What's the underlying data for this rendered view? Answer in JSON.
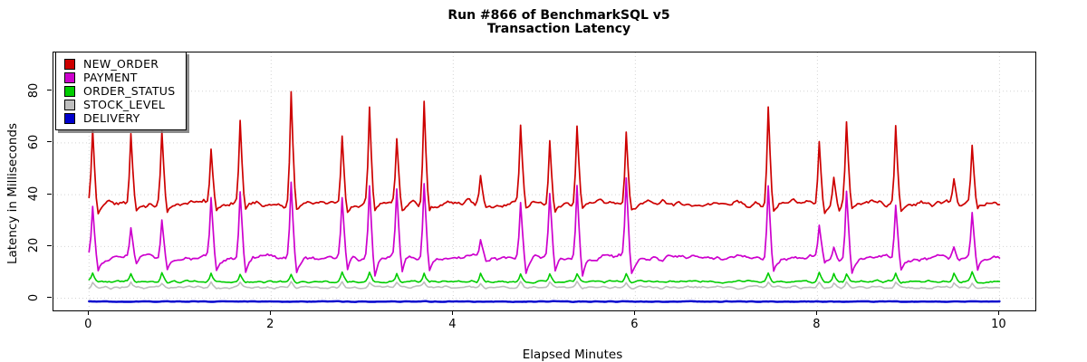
{
  "title": {
    "line1": "Run #866 of BenchmarkSQL v5",
    "line2": "Transaction Latency"
  },
  "axes": {
    "x_label": "Elapsed Minutes",
    "y_label": "Latency in Milliseconds",
    "x_ticks": [
      0,
      2,
      4,
      6,
      8,
      10
    ],
    "y_ticks": [
      0,
      20,
      40,
      60,
      80
    ],
    "x_range": [
      -0.391,
      10.394
    ],
    "y_range": [
      -4.72,
      94.95
    ],
    "grid": true
  },
  "legend": {
    "position": "top-left",
    "items": [
      {
        "label": "NEW_ORDER",
        "color": "#CD0000"
      },
      {
        "label": "PAYMENT",
        "color": "#CD00CD"
      },
      {
        "label": "ORDER_STATUS",
        "color": "#00CD00"
      },
      {
        "label": "STOCK_LEVEL",
        "color": "#BEBEBE"
      },
      {
        "label": "DELIVERY",
        "color": "#0000CD"
      }
    ]
  },
  "chart_data": {
    "type": "line",
    "title": "Run #866 of BenchmarkSQL v5 — Transaction Latency",
    "xlabel": "Elapsed Minutes",
    "ylabel": "Latency in Milliseconds",
    "x_unit": "minutes",
    "duration_minutes": 10,
    "sample_step_minutes": 0.02,
    "xlim": [
      0,
      10
    ],
    "ylim_shown": [
      -4.72,
      94.95
    ],
    "gridlines": "dotted gray at every labeled tick",
    "series": [
      {
        "key": "new_order",
        "name": "NEW_ORDER",
        "color": "#CD0000",
        "baseline_ms": 36.5,
        "noise_ms": 1.1,
        "wobble_ms": 0.5,
        "undershoot_ms": 2.6,
        "line_width": 1.7,
        "seed": 11
      },
      {
        "key": "payment",
        "name": "PAYMENT",
        "color": "#CD00CD",
        "baseline_ms": 15.6,
        "noise_ms": 0.95,
        "wobble_ms": 0.5,
        "undershoot_ms": 5.5,
        "line_width": 1.7,
        "seed": 22
      },
      {
        "key": "order_status",
        "name": "ORDER_STATUS",
        "color": "#00CD00",
        "baseline_ms": 6.4,
        "noise_ms": 0.45,
        "wobble_ms": 0.0,
        "undershoot_ms": 2.0,
        "spike_bump_ms": 3.2,
        "line_width": 1.6,
        "seed": 33
      },
      {
        "key": "stock_level",
        "name": "STOCK_LEVEL",
        "color": "#BEBEBE",
        "baseline_ms": 4.2,
        "noise_ms": 0.45,
        "wobble_ms": 0.0,
        "undershoot_ms": 1.4,
        "spike_bump_ms": 2.0,
        "line_width": 1.6,
        "seed": 44
      },
      {
        "key": "delivery",
        "name": "DELIVERY",
        "color": "#0000CD",
        "baseline_ms": -1.3,
        "noise_ms": 0.12,
        "wobble_ms": 0.0,
        "undershoot_ms": 0.0,
        "line_width": 2.4,
        "seed": 55
      }
    ],
    "spike_events": [
      {
        "t": 0.03,
        "new_order": 65,
        "payment": 35
      },
      {
        "t": 0.47,
        "new_order": 64,
        "payment": 28
      },
      {
        "t": 0.79,
        "new_order": 64,
        "payment": 31
      },
      {
        "t": 1.34,
        "new_order": 57,
        "payment": 39
      },
      {
        "t": 1.65,
        "new_order": 69,
        "payment": 42
      },
      {
        "t": 2.21,
        "new_order": 80,
        "payment": 45
      },
      {
        "t": 2.77,
        "new_order": 63,
        "payment": 38
      },
      {
        "t": 3.07,
        "new_order": 74,
        "payment": 43
      },
      {
        "t": 3.38,
        "new_order": 61,
        "payment": 42
      },
      {
        "t": 3.68,
        "new_order": 76,
        "payment": 44
      },
      {
        "t": 4.31,
        "new_order": 47,
        "payment": 22
      },
      {
        "t": 4.74,
        "new_order": 66,
        "payment": 37
      },
      {
        "t": 5.05,
        "new_order": 62,
        "payment": 40
      },
      {
        "t": 5.35,
        "new_order": 66,
        "payment": 44
      },
      {
        "t": 5.9,
        "new_order": 65,
        "payment": 46
      },
      {
        "t": 7.45,
        "new_order": 75,
        "payment": 44
      },
      {
        "t": 8.01,
        "new_order": 61,
        "payment": 27
      },
      {
        "t": 8.18,
        "new_order": 48,
        "payment": 20
      },
      {
        "t": 8.32,
        "new_order": 68,
        "payment": 42
      },
      {
        "t": 8.87,
        "new_order": 67,
        "payment": 36
      },
      {
        "t": 9.5,
        "new_order": 46,
        "payment": 19
      },
      {
        "t": 9.7,
        "new_order": 60,
        "payment": 34
      }
    ]
  }
}
